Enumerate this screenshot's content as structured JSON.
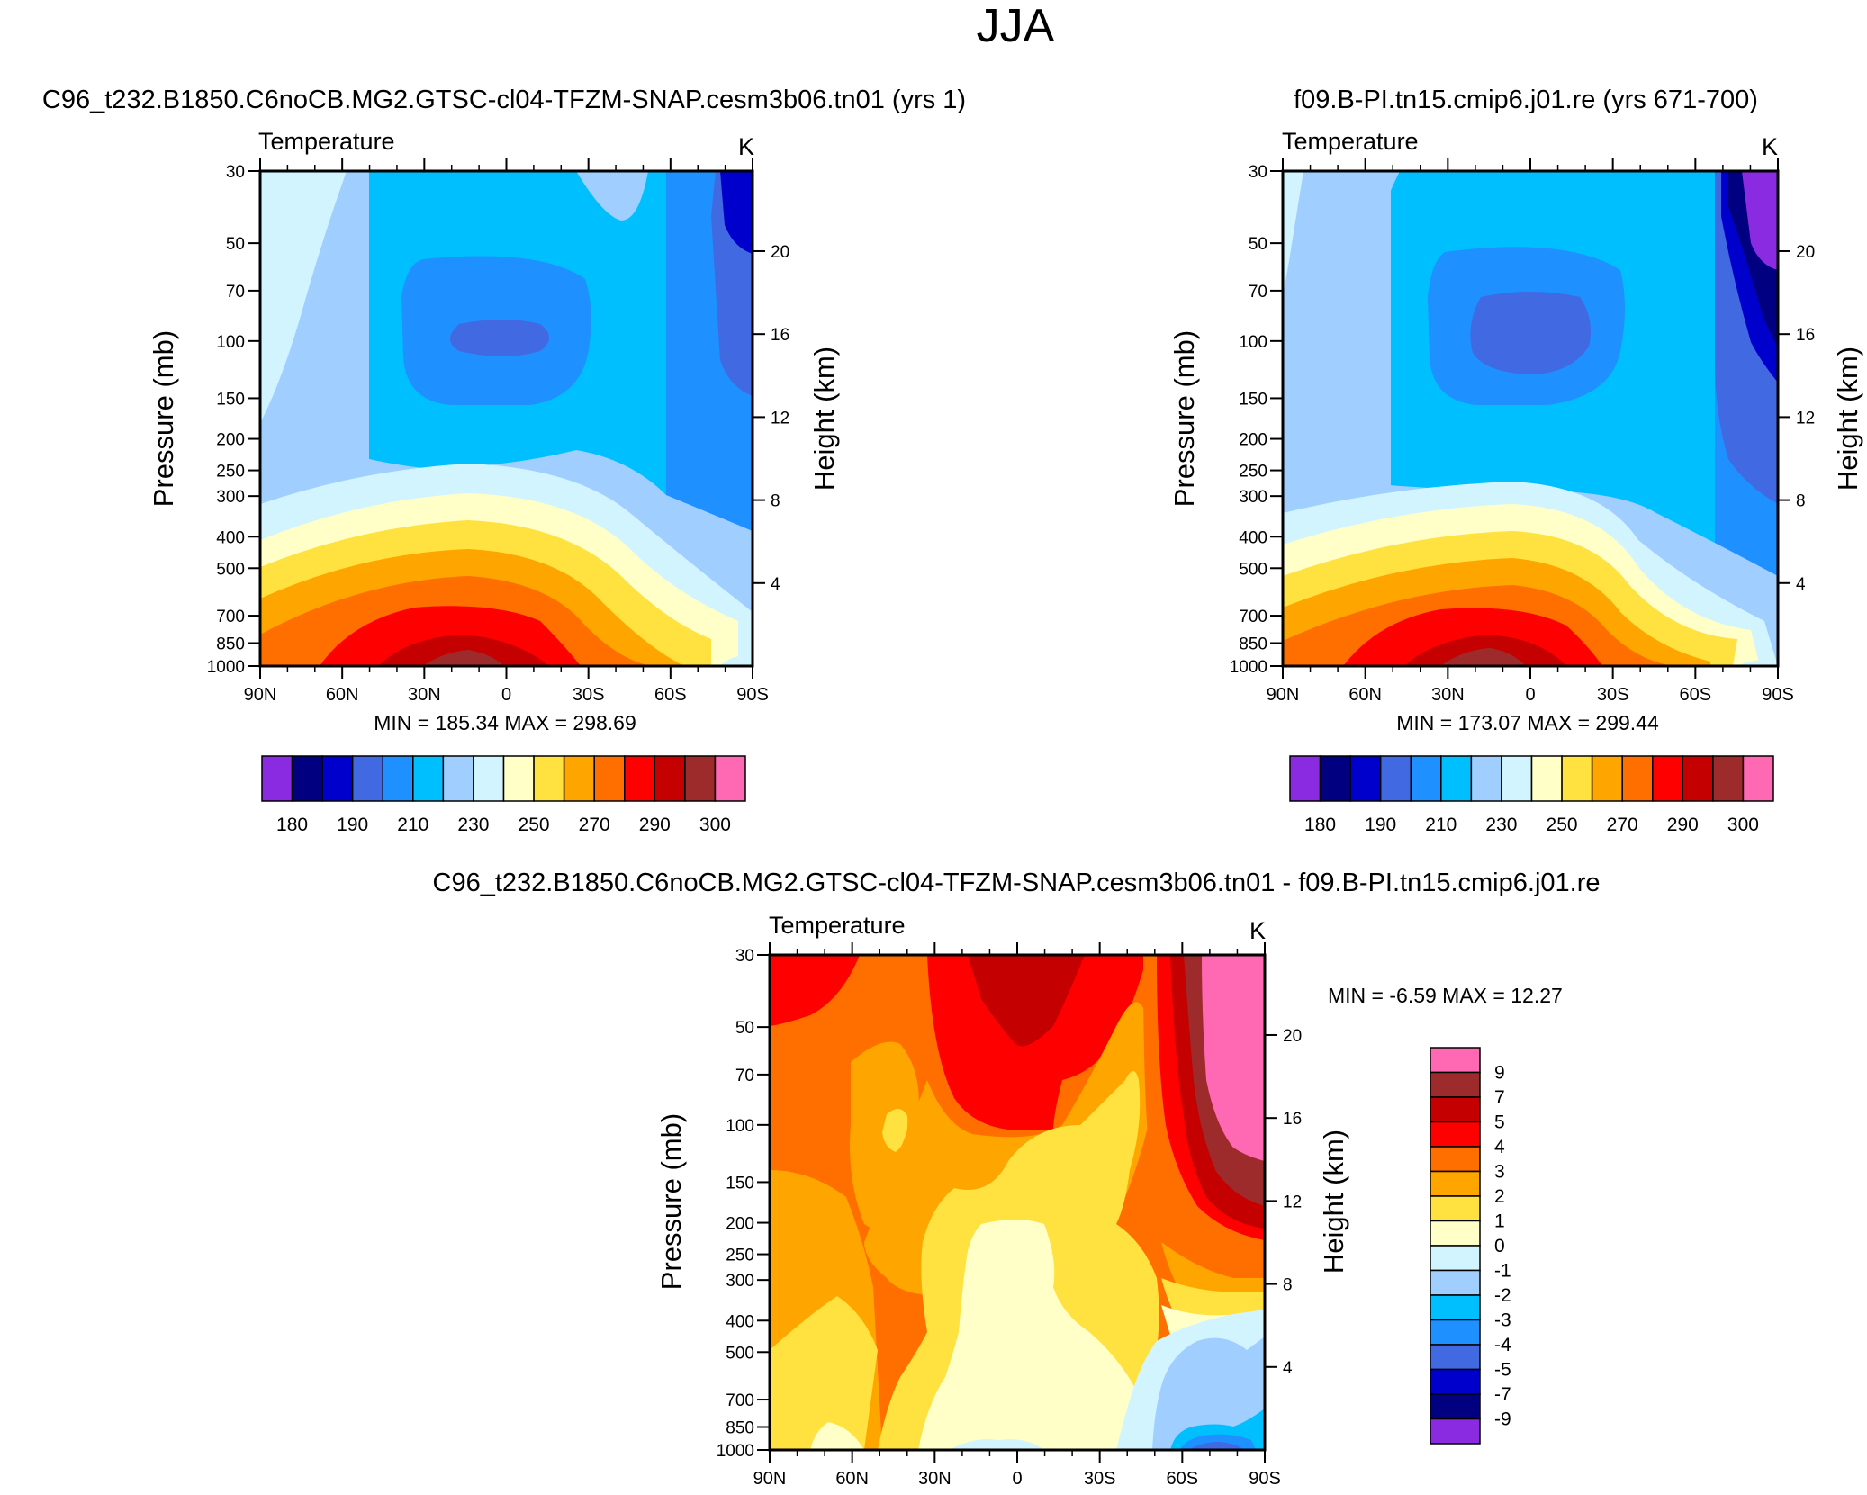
{
  "title": "JJA",
  "panel1": {
    "case": "C96_t232.B1850.C6noCB.MG2.GTSC-cl04-TFZM-SNAP.cesm3b06.tn01 (yrs 1)",
    "variable": "Temperature",
    "units": "K",
    "minmax": "MIN = 185.34  MAX = 298.69"
  },
  "panel2": {
    "case": "f09.B-PI.tn15.cmip6.j01.re (yrs 671-700)",
    "variable": "Temperature",
    "units": "K",
    "minmax": "MIN = 173.07  MAX = 299.44"
  },
  "panel3": {
    "case": "C96_t232.B1850.C6noCB.MG2.GTSC-cl04-TFZM-SNAP.cesm3b06.tn01 - f09.B-PI.tn15.cmip6.j01.re",
    "variable": "Temperature",
    "units": "K",
    "minmax": "MIN =  -6.59  MAX =  12.27"
  },
  "ylabel": "Pressure (mb)",
  "y2label": "Height (km)",
  "chart_data": [
    {
      "type": "heatmap",
      "title": "Temperature",
      "subtitle": "C96_t232.B1850.C6noCB.MG2.GTSC-cl04-TFZM-SNAP.cesm3b06.tn01 (yrs 1)",
      "units": "K",
      "xlabel": "",
      "ylabel": "Pressure (mb)",
      "y2label": "Height (km)",
      "x_ticks": [
        "90N",
        "60N",
        "30N",
        "0",
        "30S",
        "60S",
        "90S"
      ],
      "pressure_ticks": [
        30,
        50,
        70,
        100,
        150,
        200,
        250,
        300,
        400,
        500,
        700,
        850,
        1000
      ],
      "height_ticks": [
        20,
        16,
        12,
        8,
        4
      ],
      "min": 185.34,
      "max": 298.69,
      "contour_levels": [
        180,
        190,
        200,
        210,
        220,
        230,
        240,
        250,
        260,
        270,
        280,
        290,
        295,
        300
      ],
      "colorbar_labels": [
        "180",
        "190",
        "210",
        "230",
        "250",
        "270",
        "290",
        "300"
      ]
    },
    {
      "type": "heatmap",
      "title": "Temperature",
      "subtitle": "f09.B-PI.tn15.cmip6.j01.re (yrs 671-700)",
      "units": "K",
      "xlabel": "",
      "ylabel": "Pressure (mb)",
      "y2label": "Height (km)",
      "x_ticks": [
        "90N",
        "60N",
        "30N",
        "0",
        "30S",
        "60S",
        "90S"
      ],
      "pressure_ticks": [
        30,
        50,
        70,
        100,
        150,
        200,
        250,
        300,
        400,
        500,
        700,
        850,
        1000
      ],
      "height_ticks": [
        20,
        16,
        12,
        8,
        4
      ],
      "min": 173.07,
      "max": 299.44,
      "contour_levels": [
        180,
        190,
        200,
        210,
        220,
        230,
        240,
        250,
        260,
        270,
        280,
        290,
        295,
        300
      ],
      "colorbar_labels": [
        "180",
        "190",
        "210",
        "230",
        "250",
        "270",
        "290",
        "300"
      ]
    },
    {
      "type": "heatmap",
      "title": "Temperature",
      "subtitle": "C96_t232.B1850.C6noCB.MG2.GTSC-cl04-TFZM-SNAP.cesm3b06.tn01 - f09.B-PI.tn15.cmip6.j01.re",
      "units": "K",
      "xlabel": "",
      "ylabel": "Pressure (mb)",
      "y2label": "Height (km)",
      "x_ticks": [
        "90N",
        "60N",
        "30N",
        "0",
        "30S",
        "60S",
        "90S"
      ],
      "pressure_ticks": [
        30,
        50,
        70,
        100,
        150,
        200,
        250,
        300,
        400,
        500,
        700,
        850,
        1000
      ],
      "height_ticks": [
        20,
        16,
        12,
        8,
        4
      ],
      "min": -6.59,
      "max": 12.27,
      "contour_levels": [
        -9,
        -7,
        -5,
        -4,
        -3,
        -2,
        -1,
        0,
        1,
        2,
        3,
        4,
        5,
        7,
        9
      ],
      "colorbar_labels": [
        "9",
        "7",
        "5",
        "4",
        "3",
        "2",
        "1",
        "0",
        "-1",
        "-2",
        "-3",
        "-4",
        "-5",
        "-7",
        "-9"
      ]
    }
  ],
  "colors": {
    "absolute": [
      "#8a2be2",
      "#000080",
      "#0000cd",
      "#4169e1",
      "#1e90ff",
      "#00bfff",
      "#a0cfff",
      "#d1f4ff",
      "#ffffc8",
      "#ffe13f",
      "#ffa500",
      "#ff6f00",
      "#ff0000",
      "#c50000",
      "#9e2b2b",
      "#ff69b4"
    ],
    "difference": [
      "#8a2be2",
      "#000080",
      "#0000cd",
      "#4169e1",
      "#1e90ff",
      "#00bfff",
      "#a0cfff",
      "#d1f4ff",
      "#ffffc8",
      "#ffe13f",
      "#ffa500",
      "#ff6f00",
      "#ff0000",
      "#c50000",
      "#9e2b2b",
      "#ff69b4"
    ]
  }
}
